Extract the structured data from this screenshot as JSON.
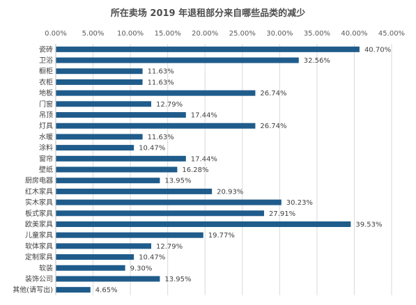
{
  "chart_data": {
    "type": "bar",
    "orientation": "horizontal",
    "title": "所在卖场 2019 年退租部分来自哪些品类的减少",
    "xlim": [
      0,
      45
    ],
    "x_ticks": [
      "0.00%",
      "5.00%",
      "10.00%",
      "15.00%",
      "20.00%",
      "25.00%",
      "30.00%",
      "35.00%",
      "40.00%",
      "45.00%"
    ],
    "x_axis_position": "top",
    "grid": true,
    "bar_color": "#1f5c8b",
    "categories": [
      "瓷砖",
      "卫浴",
      "橱柜",
      "衣柜",
      "地板",
      "门窗",
      "吊顶",
      "灯具",
      "水暖",
      "涂料",
      "窗帘",
      "壁纸",
      "厨房电器",
      "红木家具",
      "实木家具",
      "板式家具",
      "欧美家具",
      "儿童家具",
      "软体家具",
      "定制家具",
      "软装",
      "装饰公司",
      "其他(请写出)"
    ],
    "values": [
      40.7,
      32.56,
      11.63,
      11.63,
      26.74,
      12.79,
      17.44,
      26.74,
      11.63,
      10.47,
      17.44,
      16.28,
      13.95,
      20.93,
      30.23,
      27.91,
      39.53,
      19.77,
      12.79,
      10.47,
      9.3,
      13.95,
      4.65
    ],
    "value_labels": [
      "40.70%",
      "32.56%",
      "11.63%",
      "11.63%",
      "26.74%",
      "12.79%",
      "17.44%",
      "26.74%",
      "11.63%",
      "10.47%",
      "17.44%",
      "16.28%",
      "13.95%",
      "20.93%",
      "30.23%",
      "27.91%",
      "39.53%",
      "19.77%",
      "12.79%",
      "10.47%",
      "9.30%",
      "13.95%",
      "4.65%"
    ]
  }
}
